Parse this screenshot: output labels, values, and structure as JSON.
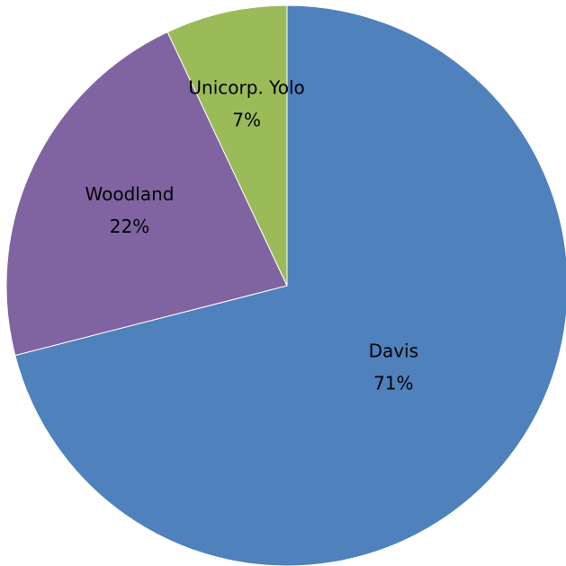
{
  "chart_data": {
    "type": "pie",
    "title": "",
    "categories": [
      "Davis",
      "Woodland",
      "Unicorp. Yolo"
    ],
    "values": [
      71,
      22,
      7
    ],
    "labels": [
      {
        "name": "Davis",
        "percent": "71%"
      },
      {
        "name": "Woodland",
        "percent": "22%"
      },
      {
        "name": "Unicorp. Yolo",
        "percent": "7%"
      }
    ],
    "colors": [
      "#4F81BD",
      "#8064A2",
      "#9BBB59"
    ],
    "legend": "none",
    "start_direction": "top",
    "rotation": "clockwise"
  }
}
